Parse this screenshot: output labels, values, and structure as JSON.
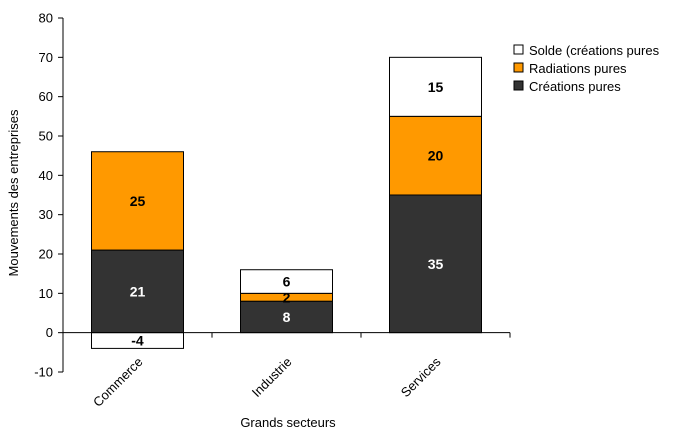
{
  "chart_data": {
    "type": "bar",
    "stacked": true,
    "categories": [
      "Commerce",
      "Industrie",
      "Services"
    ],
    "series": [
      {
        "name": "Créations pures",
        "values": [
          21,
          8,
          35
        ],
        "color": "#333333",
        "label_color": "#ffffff"
      },
      {
        "name": "Radiations pures",
        "values": [
          25,
          2,
          20
        ],
        "color": "#ff9900",
        "label_color": "#000000"
      },
      {
        "name": "Solde (créations pures",
        "values": [
          -4,
          6,
          15
        ],
        "color": "#ffffff",
        "label_color": "#000000"
      }
    ],
    "xlabel": "Grands secteurs",
    "ylabel": "Mouvements des entreprises",
    "ylim": [
      -10,
      80
    ],
    "yticks": [
      -10,
      0,
      10,
      20,
      30,
      40,
      50,
      60,
      70,
      80
    ],
    "grid": false,
    "legend_position": "top-right"
  }
}
